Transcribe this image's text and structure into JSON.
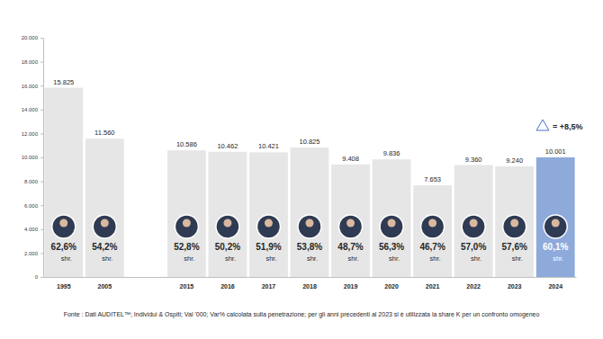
{
  "chart_data": {
    "type": "bar",
    "categories": [
      "1995",
      "2005",
      null,
      "2015",
      "2016",
      "2017",
      "2018",
      "2019",
      "2020",
      "2021",
      "2022",
      "2023",
      "2024"
    ],
    "values": [
      15825,
      11560,
      null,
      10586,
      10462,
      10421,
      10825,
      9408,
      9836,
      7653,
      9360,
      9240,
      10001
    ],
    "value_labels": [
      "15.825",
      "11.560",
      null,
      "10.586",
      "10.462",
      "10.421",
      "10.825",
      "9.408",
      "9.836",
      "7.653",
      "9.360",
      "9.240",
      "10.001"
    ],
    "share_labels": [
      "62,6%",
      "54,2%",
      null,
      "52,8%",
      "50,2%",
      "51,9%",
      "53,8%",
      "48,7%",
      "56,3%",
      "46,7%",
      "57,0%",
      "57,6%",
      "60,1%"
    ],
    "share_unit": "shr.",
    "colors": [
      "#e6e6e6",
      "#e6e6e6",
      null,
      "#e6e6e6",
      "#e6e6e6",
      "#e6e6e6",
      "#e6e6e6",
      "#e6e6e6",
      "#e6e6e6",
      "#e6e6e6",
      "#e6e6e6",
      "#e6e6e6",
      "#8eaadb"
    ],
    "data_labels": true,
    "grid": false,
    "ylim": [
      0,
      20000
    ],
    "yticks": [
      0,
      {
        "value": 2000,
        "label": "2.000"
      },
      {
        "value": 4000,
        "label": "4.000"
      },
      {
        "value": 6000,
        "label": "6.000"
      },
      {
        "value": 8000,
        "label": "8.000"
      },
      {
        "value": 10000,
        "label": "10.000"
      },
      {
        "value": 12000,
        "label": "12.000"
      },
      {
        "value": 14000,
        "label": "14.000"
      },
      {
        "value": 16000,
        "label": "16.000"
      },
      {
        "value": 18000,
        "label": "18.000"
      },
      {
        "value": 20000,
        "label": "20.000"
      }
    ],
    "annotation": "= +8,5%",
    "source": "Fonte : Dati AUDITEL™; Individui & Ospiti; Val '000; Var% calcolata sulla penetrazione; per gli anni precedenti al 2023 si è utilizzata la share K per un confronto omogeneo"
  }
}
